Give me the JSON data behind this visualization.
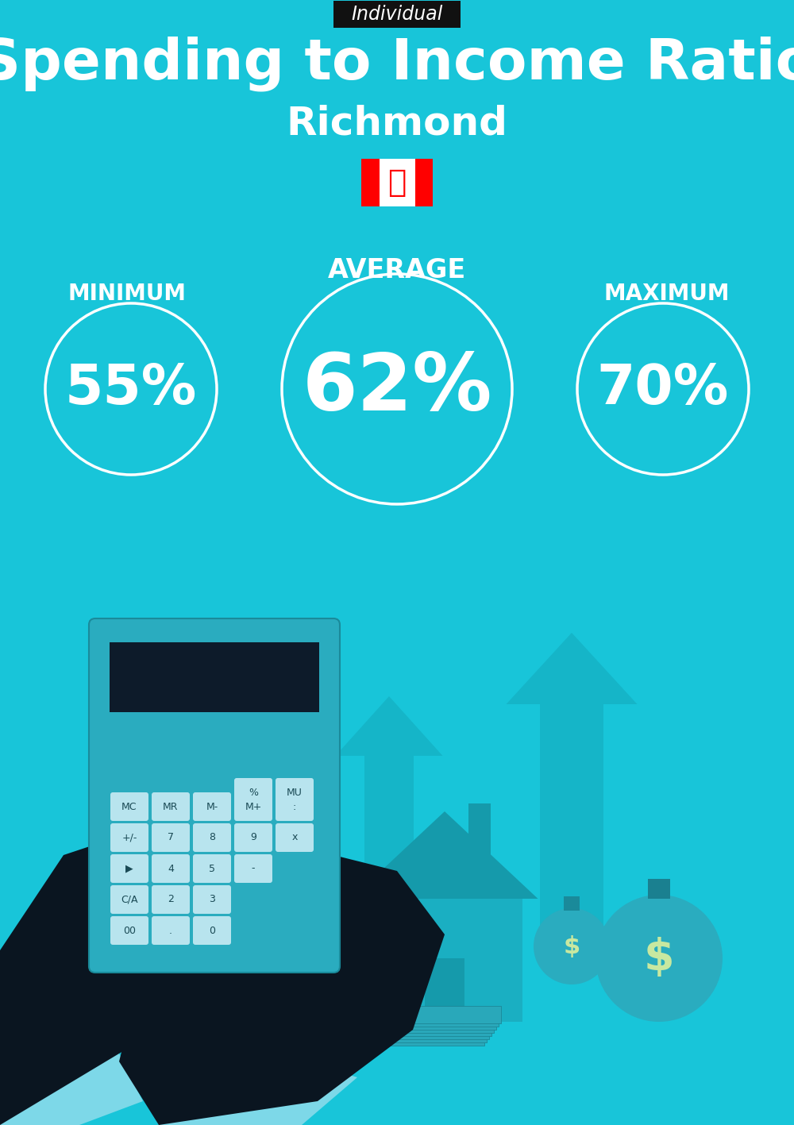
{
  "bg_color": "#18C5D9",
  "title": "Spending to Income Ratio",
  "subtitle": "Richmond",
  "tag_text": "Individual",
  "tag_bg": "#111111",
  "tag_text_color": "#ffffff",
  "title_color": "#ffffff",
  "subtitle_color": "#ffffff",
  "average_label": "AVERAGE",
  "minimum_label": "MINIMUM",
  "maximum_label": "MAXIMUM",
  "average_value": "62%",
  "minimum_value": "55%",
  "maximum_value": "70%",
  "label_color": "#ffffff",
  "value_color": "#ffffff",
  "circle_edge_color": "#ffffff",
  "arrow_color": "#15B5C8",
  "house_color": "#1AAFC2",
  "house_dark": "#159AAB",
  "hand_color": "#0A1520",
  "cuff_color": "#7DD8E8",
  "calc_color": "#2AACBF",
  "calc_dark": "#1A8A9A",
  "screen_color": "#0D1B2A",
  "btn_color": "#B8E4EE",
  "btn_text_color": "#1A4A55",
  "bag_color": "#2AACBF",
  "bag_sign_color": "#C8E8A0",
  "money_color": "#29A8BA"
}
